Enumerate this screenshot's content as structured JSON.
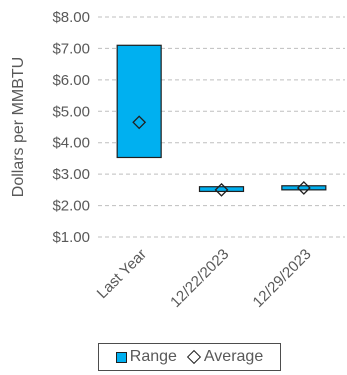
{
  "chart_data": {
    "type": "range-bar",
    "categories": [
      "Last Year",
      "12/22/2023",
      "12/29/2023"
    ],
    "series": [
      {
        "name": "Range",
        "low": [
          3.53,
          2.45,
          2.5
        ],
        "high": [
          7.1,
          2.6,
          2.63
        ],
        "color": "#00b0f0"
      },
      {
        "name": "Average",
        "values": [
          4.65,
          2.5,
          2.56
        ],
        "marker": "diamond"
      }
    ],
    "ylabel": "Dollars per MMBTU",
    "ylim": [
      1.0,
      8.0
    ],
    "yticks": [
      "$1.00",
      "$2.00",
      "$3.00",
      "$4.00",
      "$5.00",
      "$6.00",
      "$7.00",
      "$8.00"
    ],
    "grid": "horizontal-dashed",
    "legend_position": "bottom"
  }
}
